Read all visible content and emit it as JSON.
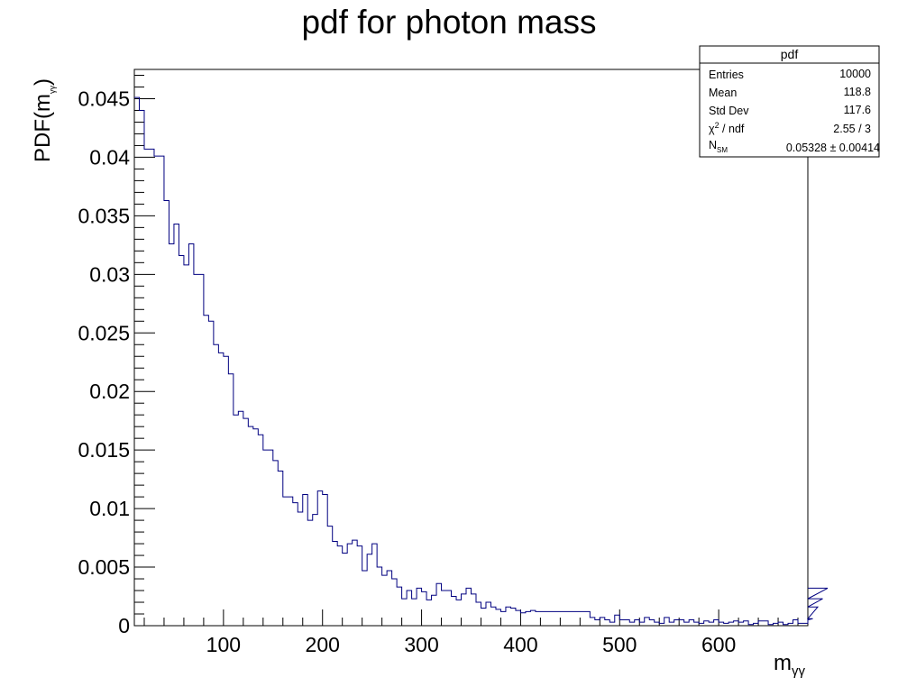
{
  "chart_data": {
    "type": "bar",
    "style": "step-histogram",
    "title": "pdf for photon mass",
    "xlabel": "m",
    "xlabel_sub": "γγ",
    "ylabel": "PDF(m",
    "ylabel_sub": "γγ",
    "ylabel_close": ")",
    "xlim": [
      10,
      690
    ],
    "ylim": [
      0,
      0.0475
    ],
    "x_ticks": [
      100,
      200,
      300,
      400,
      500,
      600
    ],
    "y_ticks": [
      0,
      0.005,
      0.01,
      0.015,
      0.02,
      0.025,
      0.03,
      0.035,
      0.04,
      0.045
    ],
    "y_tick_labels": [
      "0",
      "0.005",
      "0.01",
      "0.015",
      "0.02",
      "0.025",
      "0.03",
      "0.035",
      "0.04",
      "0.045"
    ],
    "grid": false,
    "line_color": "#000080",
    "bin_edges_start": 10,
    "bin_width": 5,
    "values": [
      0.0451,
      0.044,
      0.0407,
      0.0407,
      0.0401,
      0.0401,
      0.0363,
      0.0326,
      0.0343,
      0.0316,
      0.0308,
      0.0326,
      0.03,
      0.03,
      0.0265,
      0.026,
      0.024,
      0.0233,
      0.023,
      0.0215,
      0.018,
      0.0183,
      0.0177,
      0.017,
      0.0168,
      0.0163,
      0.015,
      0.015,
      0.0141,
      0.0132,
      0.011,
      0.011,
      0.0105,
      0.0097,
      0.0112,
      0.009,
      0.0095,
      0.0115,
      0.0112,
      0.0085,
      0.0072,
      0.0068,
      0.0062,
      0.007,
      0.0073,
      0.0068,
      0.0047,
      0.0061,
      0.007,
      0.005,
      0.0043,
      0.0047,
      0.004,
      0.0033,
      0.0023,
      0.003,
      0.0023,
      0.0032,
      0.0029,
      0.0022,
      0.0026,
      0.0036,
      0.003,
      0.003,
      0.0025,
      0.0022,
      0.0027,
      0.0032,
      0.0027,
      0.002,
      0.0015,
      0.002,
      0.0016,
      0.0014,
      0.0012,
      0.0016,
      0.0015,
      0.0013,
      0.0011,
      0.0012,
      0.0013,
      0.0012,
      0.0012,
      0.0012,
      0.0012,
      0.0012,
      0.0012,
      0.0012,
      0.0012,
      0.0012,
      0.0012,
      0.0012,
      0.0007,
      0.0005,
      0.0007,
      0.0005,
      0.0003,
      0.0009,
      0.0005,
      0.0005,
      0.0003,
      0.0005,
      0.0003,
      0.0007,
      0.0005,
      0.0003,
      0.0002,
      0.0007,
      0.0003,
      0.0005,
      0.0005,
      0.0003,
      0.0005,
      0.0003,
      0.0002,
      0.0004,
      0.0003,
      0.0005,
      0.0003,
      0.0002,
      0.0003,
      0.0004,
      0.0003,
      0.0004,
      0.0001,
      0.0002,
      0.0004,
      0.0004,
      0.0001,
      0.0002,
      0.0003,
      0.0001,
      0.0002,
      0.0005,
      0.0002,
      0.0002,
      0.0005,
      0.0006,
      0.0016,
      0.0023,
      0.0032
    ]
  },
  "stats_box": {
    "title": "pdf",
    "rows": [
      {
        "label": "Entries",
        "value": "10000"
      },
      {
        "label": "Mean",
        "value": "118.8"
      },
      {
        "label": "Std Dev",
        "value": "117.6"
      }
    ],
    "chi2_symbol": "χ",
    "chi2_sup": "2",
    "chi2_rest": " / ndf",
    "chi2_value": "2.55 / 3",
    "nsm_main": "N",
    "nsm_sub": "SM",
    "nsm_value": "0.05328 ± 0.00414"
  }
}
